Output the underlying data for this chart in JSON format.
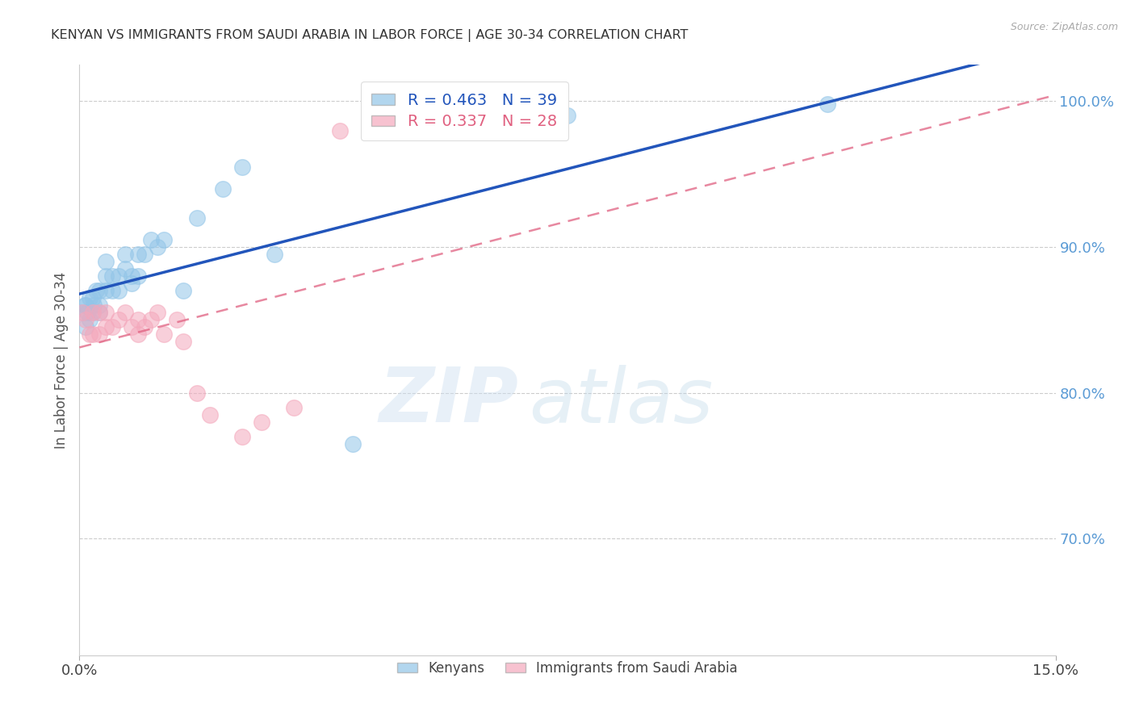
{
  "title": "KENYAN VS IMMIGRANTS FROM SAUDI ARABIA IN LABOR FORCE | AGE 30-34 CORRELATION CHART",
  "source": "Source: ZipAtlas.com",
  "ylabel": "In Labor Force | Age 30-34",
  "ylabel_right_ticks": [
    "100.0%",
    "90.0%",
    "80.0%",
    "70.0%"
  ],
  "ylabel_right_values": [
    1.0,
    0.9,
    0.8,
    0.7
  ],
  "xlim": [
    0.0,
    0.15
  ],
  "ylim": [
    0.62,
    1.025
  ],
  "legend_kenyan": "R = 0.463   N = 39",
  "legend_saudi": "R = 0.337   N = 28",
  "kenyan_color": "#92c5e8",
  "saudi_color": "#f4a8bc",
  "kenyan_line_color": "#2255bb",
  "saudi_line_color": "#e06080",
  "kenyan_x": [
    0.0005,
    0.0008,
    0.001,
    0.001,
    0.0012,
    0.0015,
    0.0015,
    0.002,
    0.002,
    0.0022,
    0.0025,
    0.003,
    0.003,
    0.003,
    0.004,
    0.004,
    0.004,
    0.005,
    0.005,
    0.006,
    0.006,
    0.007,
    0.007,
    0.008,
    0.008,
    0.009,
    0.009,
    0.01,
    0.011,
    0.012,
    0.013,
    0.016,
    0.018,
    0.022,
    0.025,
    0.03,
    0.042,
    0.075,
    0.115
  ],
  "kenyan_y": [
    0.855,
    0.86,
    0.845,
    0.86,
    0.855,
    0.85,
    0.865,
    0.855,
    0.865,
    0.86,
    0.87,
    0.855,
    0.86,
    0.87,
    0.87,
    0.88,
    0.89,
    0.87,
    0.88,
    0.87,
    0.88,
    0.885,
    0.895,
    0.875,
    0.88,
    0.88,
    0.895,
    0.895,
    0.905,
    0.9,
    0.905,
    0.87,
    0.92,
    0.94,
    0.955,
    0.895,
    0.765,
    0.99,
    0.998
  ],
  "saudi_x": [
    0.0005,
    0.001,
    0.0015,
    0.002,
    0.002,
    0.003,
    0.003,
    0.004,
    0.004,
    0.005,
    0.006,
    0.007,
    0.008,
    0.009,
    0.009,
    0.01,
    0.011,
    0.012,
    0.013,
    0.015,
    0.016,
    0.018,
    0.02,
    0.025,
    0.028,
    0.033,
    0.04,
    0.052
  ],
  "saudi_y": [
    0.855,
    0.85,
    0.84,
    0.84,
    0.855,
    0.84,
    0.855,
    0.845,
    0.855,
    0.845,
    0.85,
    0.855,
    0.845,
    0.84,
    0.85,
    0.845,
    0.85,
    0.855,
    0.84,
    0.85,
    0.835,
    0.8,
    0.785,
    0.77,
    0.78,
    0.79,
    0.98,
    0.985
  ],
  "watermark_zip": "ZIP",
  "watermark_atlas": "atlas",
  "grid_color": "#cccccc",
  "background_color": "#ffffff",
  "bottom_legend_kenyan": "Kenyans",
  "bottom_legend_saudi": "Immigrants from Saudi Arabia"
}
